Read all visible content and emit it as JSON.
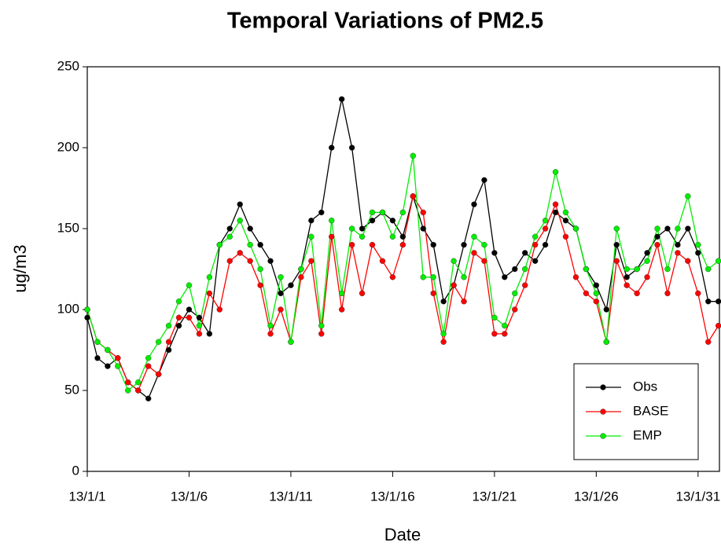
{
  "chart_data": {
    "type": "line",
    "title": "Temporal Variations of PM2.5",
    "xlabel": "Date",
    "ylabel": "ug/m3",
    "x": [
      0,
      0.5,
      1,
      1.5,
      2,
      2.5,
      3,
      3.5,
      4,
      4.5,
      5,
      5.5,
      6,
      6.5,
      7,
      7.5,
      8,
      8.5,
      9,
      9.5,
      10,
      10.5,
      11,
      11.5,
      12,
      12.5,
      13,
      13.5,
      14,
      14.5,
      15,
      15.5,
      16,
      16.5,
      17,
      17.5,
      18,
      18.5,
      19,
      19.5,
      20,
      20.5,
      21,
      21.5,
      22,
      22.5,
      23,
      23.5,
      24,
      24.5,
      25,
      25.5,
      26,
      26.5,
      27,
      27.5,
      28,
      28.5,
      29,
      29.5,
      30,
      30.5,
      31
    ],
    "series": [
      {
        "name": "Obs",
        "color": "#000000",
        "values": [
          95,
          70,
          65,
          70,
          55,
          50,
          45,
          60,
          75,
          90,
          100,
          95,
          85,
          140,
          150,
          165,
          150,
          140,
          130,
          110,
          115,
          125,
          155,
          160,
          200,
          230,
          200,
          150,
          155,
          160,
          155,
          145,
          170,
          150,
          140,
          105,
          115,
          140,
          165,
          180,
          135,
          120,
          125,
          135,
          130,
          140,
          160,
          155,
          150,
          125,
          115,
          100,
          140,
          120,
          125,
          135,
          145,
          150,
          140,
          150,
          135,
          105,
          105
        ]
      },
      {
        "name": "BASE",
        "color": "#ff0000",
        "values": [
          100,
          80,
          75,
          70,
          55,
          50,
          65,
          60,
          80,
          95,
          95,
          85,
          110,
          100,
          130,
          135,
          130,
          115,
          85,
          100,
          80,
          120,
          130,
          85,
          145,
          100,
          140,
          110,
          140,
          130,
          120,
          140,
          170,
          160,
          110,
          80,
          115,
          105,
          135,
          130,
          85,
          85,
          100,
          115,
          140,
          150,
          165,
          145,
          120,
          110,
          105,
          80,
          130,
          115,
          110,
          120,
          140,
          110,
          135,
          130,
          110,
          80,
          90
        ]
      },
      {
        "name": "EMP",
        "color": "#00ee00",
        "values": [
          100,
          80,
          75,
          65,
          50,
          55,
          70,
          80,
          90,
          105,
          115,
          90,
          120,
          140,
          145,
          155,
          140,
          125,
          90,
          120,
          80,
          125,
          145,
          90,
          155,
          110,
          150,
          145,
          160,
          160,
          145,
          160,
          195,
          120,
          120,
          85,
          130,
          120,
          145,
          140,
          95,
          90,
          110,
          125,
          145,
          155,
          185,
          160,
          150,
          125,
          110,
          80,
          150,
          125,
          125,
          130,
          150,
          125,
          150,
          170,
          140,
          125,
          130
        ]
      }
    ],
    "xlim": [
      0,
      31.05
    ],
    "ylim": [
      0,
      250
    ],
    "xticks": [
      {
        "value": 0,
        "label": "13/1/1"
      },
      {
        "value": 5,
        "label": "13/1/6"
      },
      {
        "value": 10,
        "label": "13/1/11"
      },
      {
        "value": 15,
        "label": "13/1/16"
      },
      {
        "value": 20,
        "label": "13/1/21"
      },
      {
        "value": 25,
        "label": "13/1/26"
      },
      {
        "value": 30,
        "label": "13/1/31"
      }
    ],
    "yticks": [
      0,
      50,
      100,
      150,
      200,
      250
    ],
    "legend": "lower right"
  }
}
